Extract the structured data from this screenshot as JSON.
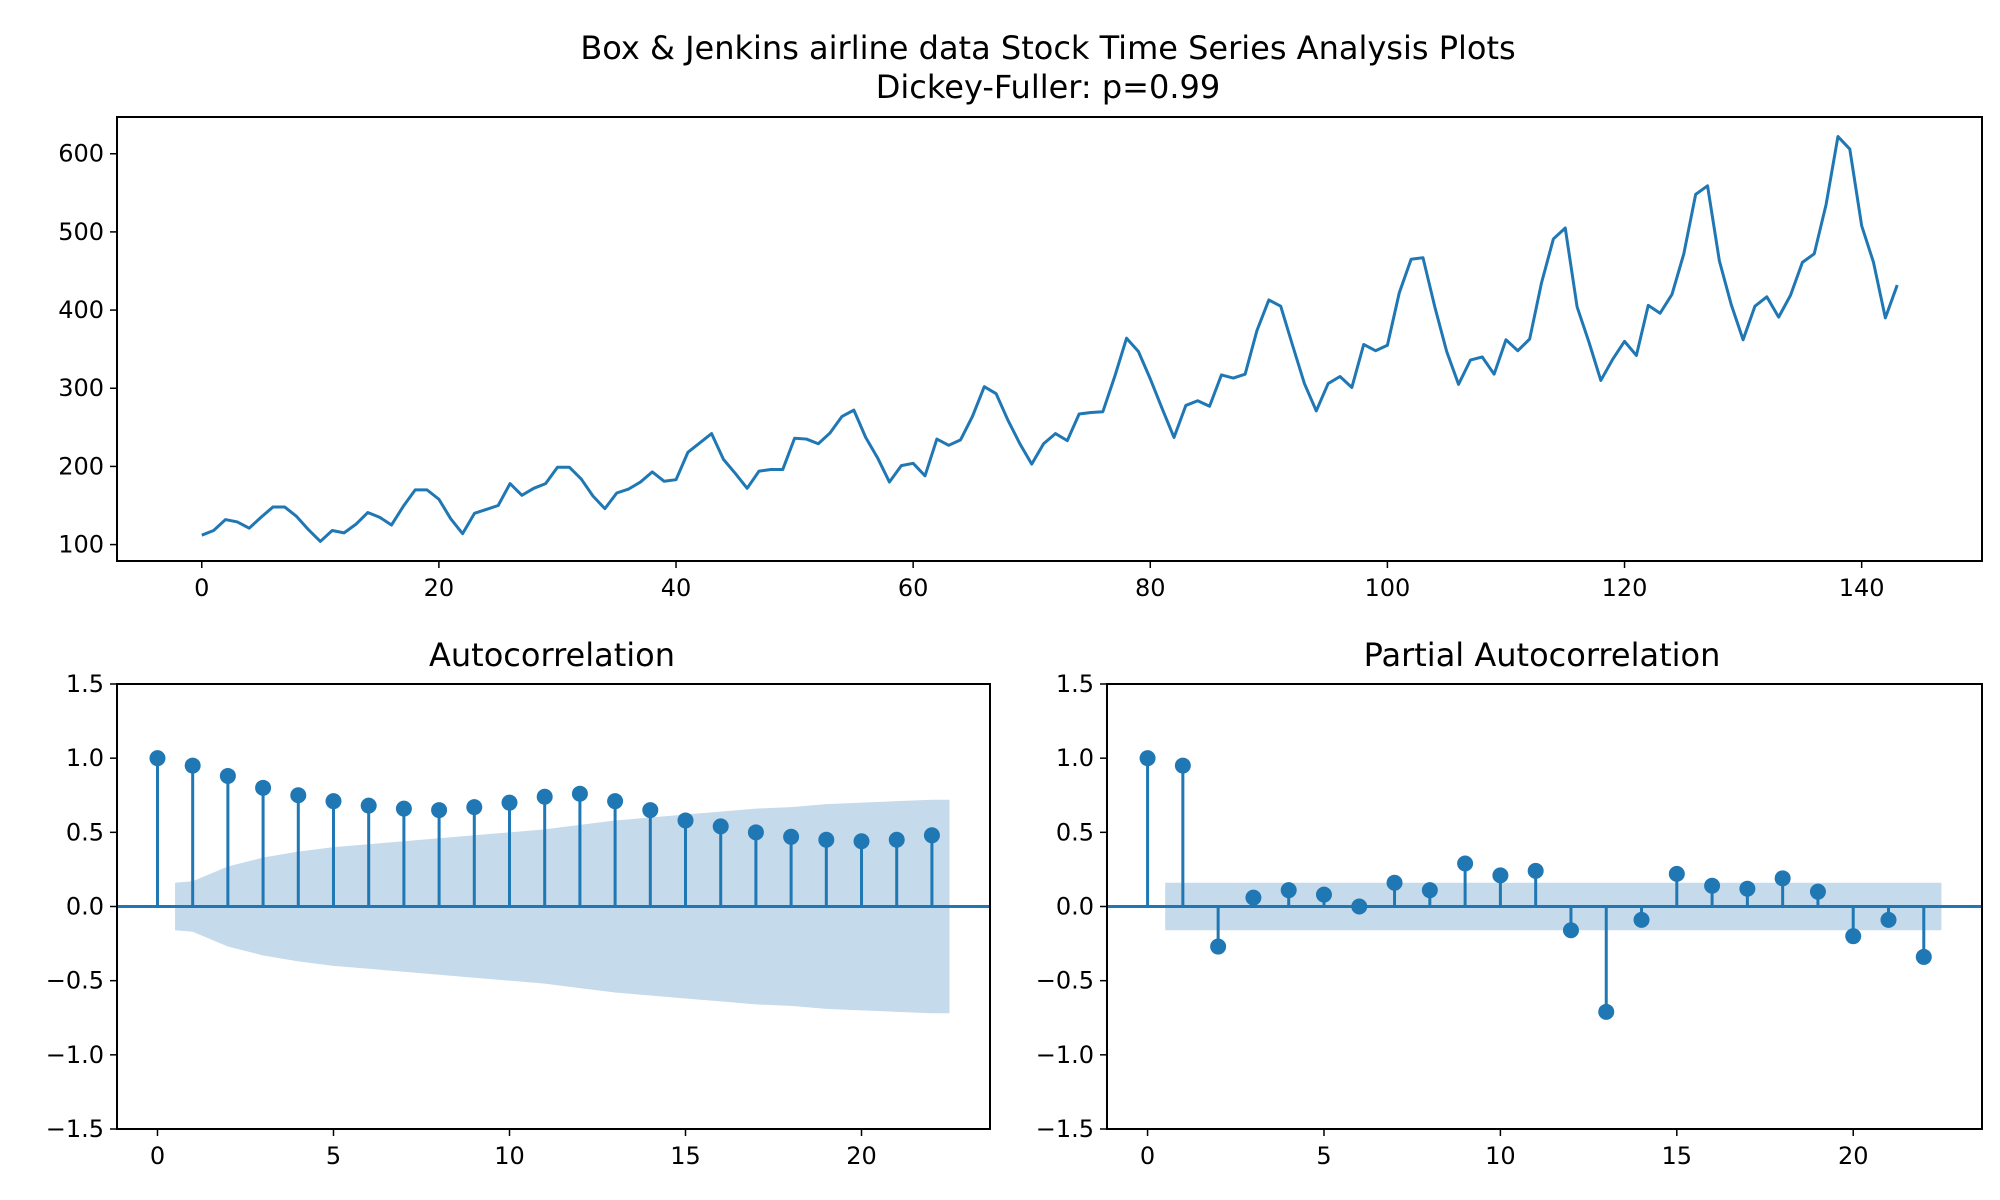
{
  "colors": {
    "series": "#1f77b4",
    "band": "#c5daeb",
    "frame": "#000000"
  },
  "title_line1": "Box & Jenkins airline data Stock Time Series Analysis Plots",
  "title_line2": "Dickey-Fuller: p=0.99",
  "chart_data": [
    {
      "type": "line",
      "title": "",
      "xlabel": "",
      "ylabel": "",
      "xlim": [
        -7.15,
        150.15
      ],
      "ylim": [
        79,
        647
      ],
      "xticks": [
        0,
        20,
        40,
        60,
        80,
        100,
        120,
        140
      ],
      "yticks": [
        100,
        200,
        300,
        400,
        500,
        600
      ],
      "grid": false,
      "x_start": 0,
      "values": [
        112,
        118,
        132,
        129,
        121,
        135,
        148,
        148,
        136,
        119,
        104,
        118,
        115,
        126,
        141,
        135,
        125,
        149,
        170,
        170,
        158,
        133,
        114,
        140,
        145,
        150,
        178,
        163,
        172,
        178,
        199,
        199,
        184,
        162,
        146,
        166,
        171,
        180,
        193,
        181,
        183,
        218,
        230,
        242,
        209,
        191,
        172,
        194,
        196,
        196,
        236,
        235,
        229,
        243,
        264,
        272,
        237,
        211,
        180,
        201,
        204,
        188,
        235,
        227,
        234,
        264,
        302,
        293,
        259,
        229,
        203,
        229,
        242,
        233,
        267,
        269,
        270,
        315,
        364,
        347,
        312,
        274,
        237,
        278,
        284,
        277,
        317,
        313,
        318,
        374,
        413,
        405,
        355,
        306,
        271,
        306,
        315,
        301,
        356,
        348,
        355,
        422,
        465,
        467,
        404,
        347,
        305,
        336,
        340,
        318,
        362,
        348,
        363,
        435,
        491,
        505,
        404,
        359,
        310,
        337,
        360,
        342,
        406,
        396,
        420,
        472,
        548,
        559,
        463,
        407,
        362,
        405,
        417,
        391,
        419,
        461,
        472,
        535,
        622,
        606,
        508,
        461,
        390,
        432
      ]
    },
    {
      "type": "stem",
      "title": "Autocorrelation",
      "xlim": [
        -1.15,
        23.65
      ],
      "ylim": [
        -1.5,
        1.5
      ],
      "xticks": [
        0,
        5,
        10,
        15,
        20
      ],
      "yticks": [
        1.5,
        1.0,
        0.5,
        0.0,
        -0.5,
        -1.0,
        -1.5
      ],
      "tick_labels_y": [
        "1.5",
        "1.0",
        "0.5",
        "0.0",
        "−0.5",
        "−1.0",
        "−1.5"
      ],
      "lags": [
        0,
        1,
        2,
        3,
        4,
        5,
        6,
        7,
        8,
        9,
        10,
        11,
        12,
        13,
        14,
        15,
        16,
        17,
        18,
        19,
        20,
        21,
        22
      ],
      "values": [
        1.0,
        0.95,
        0.88,
        0.8,
        0.75,
        0.71,
        0.68,
        0.66,
        0.65,
        0.67,
        0.7,
        0.74,
        0.76,
        0.71,
        0.65,
        0.58,
        0.54,
        0.5,
        0.47,
        0.45,
        0.44,
        0.45,
        0.48
      ],
      "conf_band": {
        "lags": [
          0.5,
          1,
          2,
          3,
          4,
          5,
          6,
          7,
          8,
          9,
          10,
          11,
          12,
          13,
          14,
          15,
          16,
          17,
          18,
          19,
          20,
          21,
          22,
          22.5
        ],
        "upper": [
          0.16,
          0.17,
          0.27,
          0.33,
          0.37,
          0.4,
          0.42,
          0.44,
          0.46,
          0.48,
          0.5,
          0.52,
          0.55,
          0.58,
          0.6,
          0.62,
          0.64,
          0.66,
          0.67,
          0.69,
          0.7,
          0.71,
          0.72,
          0.72
        ]
      }
    },
    {
      "type": "stem",
      "title": "Partial Autocorrelation",
      "xlim": [
        -1.15,
        23.65
      ],
      "ylim": [
        -1.5,
        1.5
      ],
      "xticks": [
        0,
        5,
        10,
        15,
        20
      ],
      "yticks": [
        1.5,
        1.0,
        0.5,
        0.0,
        -0.5,
        -1.0,
        -1.5
      ],
      "tick_labels_y": [
        "1.5",
        "1.0",
        "0.5",
        "0.0",
        "−0.5",
        "−1.0",
        "−1.5"
      ],
      "lags": [
        0,
        1,
        2,
        3,
        4,
        5,
        6,
        7,
        8,
        9,
        10,
        11,
        12,
        13,
        14,
        15,
        16,
        17,
        18,
        19,
        20,
        21,
        22
      ],
      "values": [
        1.0,
        0.95,
        -0.27,
        0.06,
        0.11,
        0.08,
        0.0,
        0.16,
        0.11,
        0.29,
        0.21,
        0.24,
        -0.16,
        -0.71,
        -0.09,
        0.22,
        0.14,
        0.12,
        0.19,
        0.1,
        -0.2,
        -0.09,
        -0.34
      ],
      "conf_band": {
        "lags": [
          0.5,
          22.5
        ],
        "upper": [
          0.16,
          0.16
        ]
      }
    }
  ]
}
